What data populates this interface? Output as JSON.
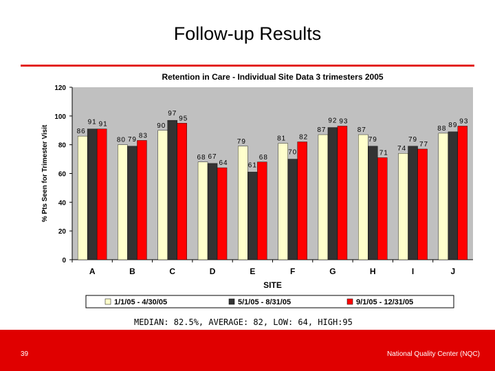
{
  "slide": {
    "title": "Follow-up Results",
    "summary": "MEDIAN: 82.5%, AVERAGE: 82, LOW: 64, HIGH:95",
    "page_number": "39",
    "organization": "National Quality Center (NQC)"
  },
  "colors": {
    "accent_red": "#e32119",
    "footer_red": "#e00000",
    "plot_background": "#c0c0c0"
  },
  "chart_data": {
    "type": "bar",
    "title": "Retention in Care - Individual Site Data 3 trimesters 2005",
    "xlabel": "SITE",
    "ylabel": "% Pts Seen for Trimester Visit",
    "ylim": [
      0,
      120
    ],
    "yticks": [
      0,
      20,
      40,
      60,
      80,
      100,
      120
    ],
    "grid": false,
    "legend_position": "bottom",
    "categories": [
      "A",
      "B",
      "C",
      "D",
      "E",
      "F",
      "G",
      "H",
      "I",
      "J"
    ],
    "series": [
      {
        "name": "1/1/05 - 4/30/05",
        "color": "#ffffcc",
        "values": [
          86,
          80,
          90,
          68,
          79,
          81,
          87,
          87,
          74,
          88
        ]
      },
      {
        "name": "5/1/05 - 8/31/05",
        "color": "#333333",
        "values": [
          91,
          79,
          97,
          67,
          61,
          70,
          92,
          79,
          79,
          89
        ]
      },
      {
        "name": "9/1/05 - 12/31/05",
        "color": "#ff0000",
        "values": [
          91,
          83,
          95,
          64,
          68,
          82,
          93,
          71,
          77,
          93
        ]
      }
    ]
  }
}
